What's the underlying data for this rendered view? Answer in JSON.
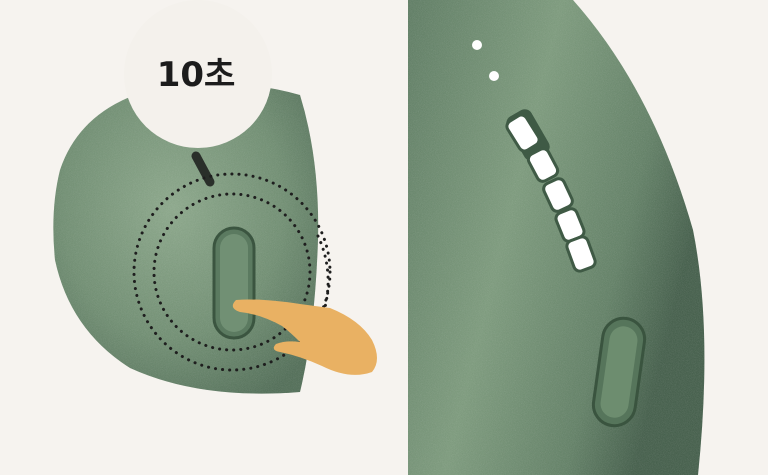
{
  "timer_badge": {
    "label": "10초"
  },
  "colors": {
    "background": "#f6f3ef",
    "device_green": "#6f8f73",
    "device_green_dark": "#3f5a45",
    "hand": "#e9b163",
    "badge_bg": "#f4f1ec",
    "led_white": "#ffffff"
  },
  "icons": {
    "hand": "pointing-hand-icon",
    "dotted_rings": "press-indicator-rings"
  }
}
